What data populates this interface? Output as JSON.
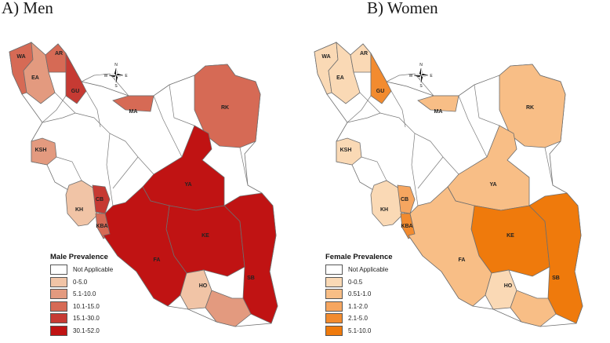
{
  "panels": [
    {
      "id": "men",
      "title": "A) Men",
      "legend_title": "Male Prevalence",
      "legend": [
        {
          "label": "Not Applicable",
          "color": "#ffffff"
        },
        {
          "label": "0-5.0",
          "color": "#f1c4a6"
        },
        {
          "label": "5.1-10.0",
          "color": "#e39a7f"
        },
        {
          "label": "10.1-15.0",
          "color": "#d66a55"
        },
        {
          "label": "15.1-30.0",
          "color": "#c63a33"
        },
        {
          "label": "30.1-52.0",
          "color": "#c01313"
        }
      ],
      "provinces": {
        "WA": "#d66a55",
        "EA": "#e39a7f",
        "AR": "#d66a55",
        "GU": "#c63a33",
        "MA": "#d66a55",
        "RK": "#d66a55",
        "KSH": "#e39a7f",
        "KH": "#f1c4a6",
        "CB": "#c63a33",
        "KBA": "#d66a55",
        "YA": "#c01313",
        "KE": "#c01313",
        "FA": "#c01313",
        "SB": "#c01313",
        "HO": "#f1c4a6",
        "HO2": "#e39a7f"
      }
    },
    {
      "id": "women",
      "title": "B) Women",
      "legend_title": "Female Prevalence",
      "legend": [
        {
          "label": "Not Applicable",
          "color": "#ffffff"
        },
        {
          "label": "0-0.5",
          "color": "#fad9b5"
        },
        {
          "label": "0.51-1.0",
          "color": "#f8be86"
        },
        {
          "label": "1.1-2.0",
          "color": "#f6a660"
        },
        {
          "label": "2.1-5.0",
          "color": "#f28b2f"
        },
        {
          "label": "5.1-10.0",
          "color": "#ef7a0c"
        }
      ],
      "provinces": {
        "WA": "#fad9b5",
        "EA": "#fad9b5",
        "AR": "#fad9b5",
        "GU": "#f28b2f",
        "MA": "#f8be86",
        "RK": "#f8be86",
        "KSH": "#fad9b5",
        "KH": "#fad9b5",
        "CB": "#f6a660",
        "KBA": "#f28b2f",
        "YA": "#f8be86",
        "KE": "#ef7a0c",
        "FA": "#f8be86",
        "SB": "#ef7a0c",
        "HO": "#fad9b5",
        "HO2": "#f8be86"
      }
    }
  ],
  "province_codes": [
    "WA",
    "EA",
    "AR",
    "GU",
    "MA",
    "RK",
    "KSH",
    "KH",
    "CB",
    "KBA",
    "YA",
    "KE",
    "FA",
    "SB",
    "HO"
  ],
  "compass": {
    "n": "N",
    "s": "S",
    "e": "E",
    "w": "W"
  }
}
